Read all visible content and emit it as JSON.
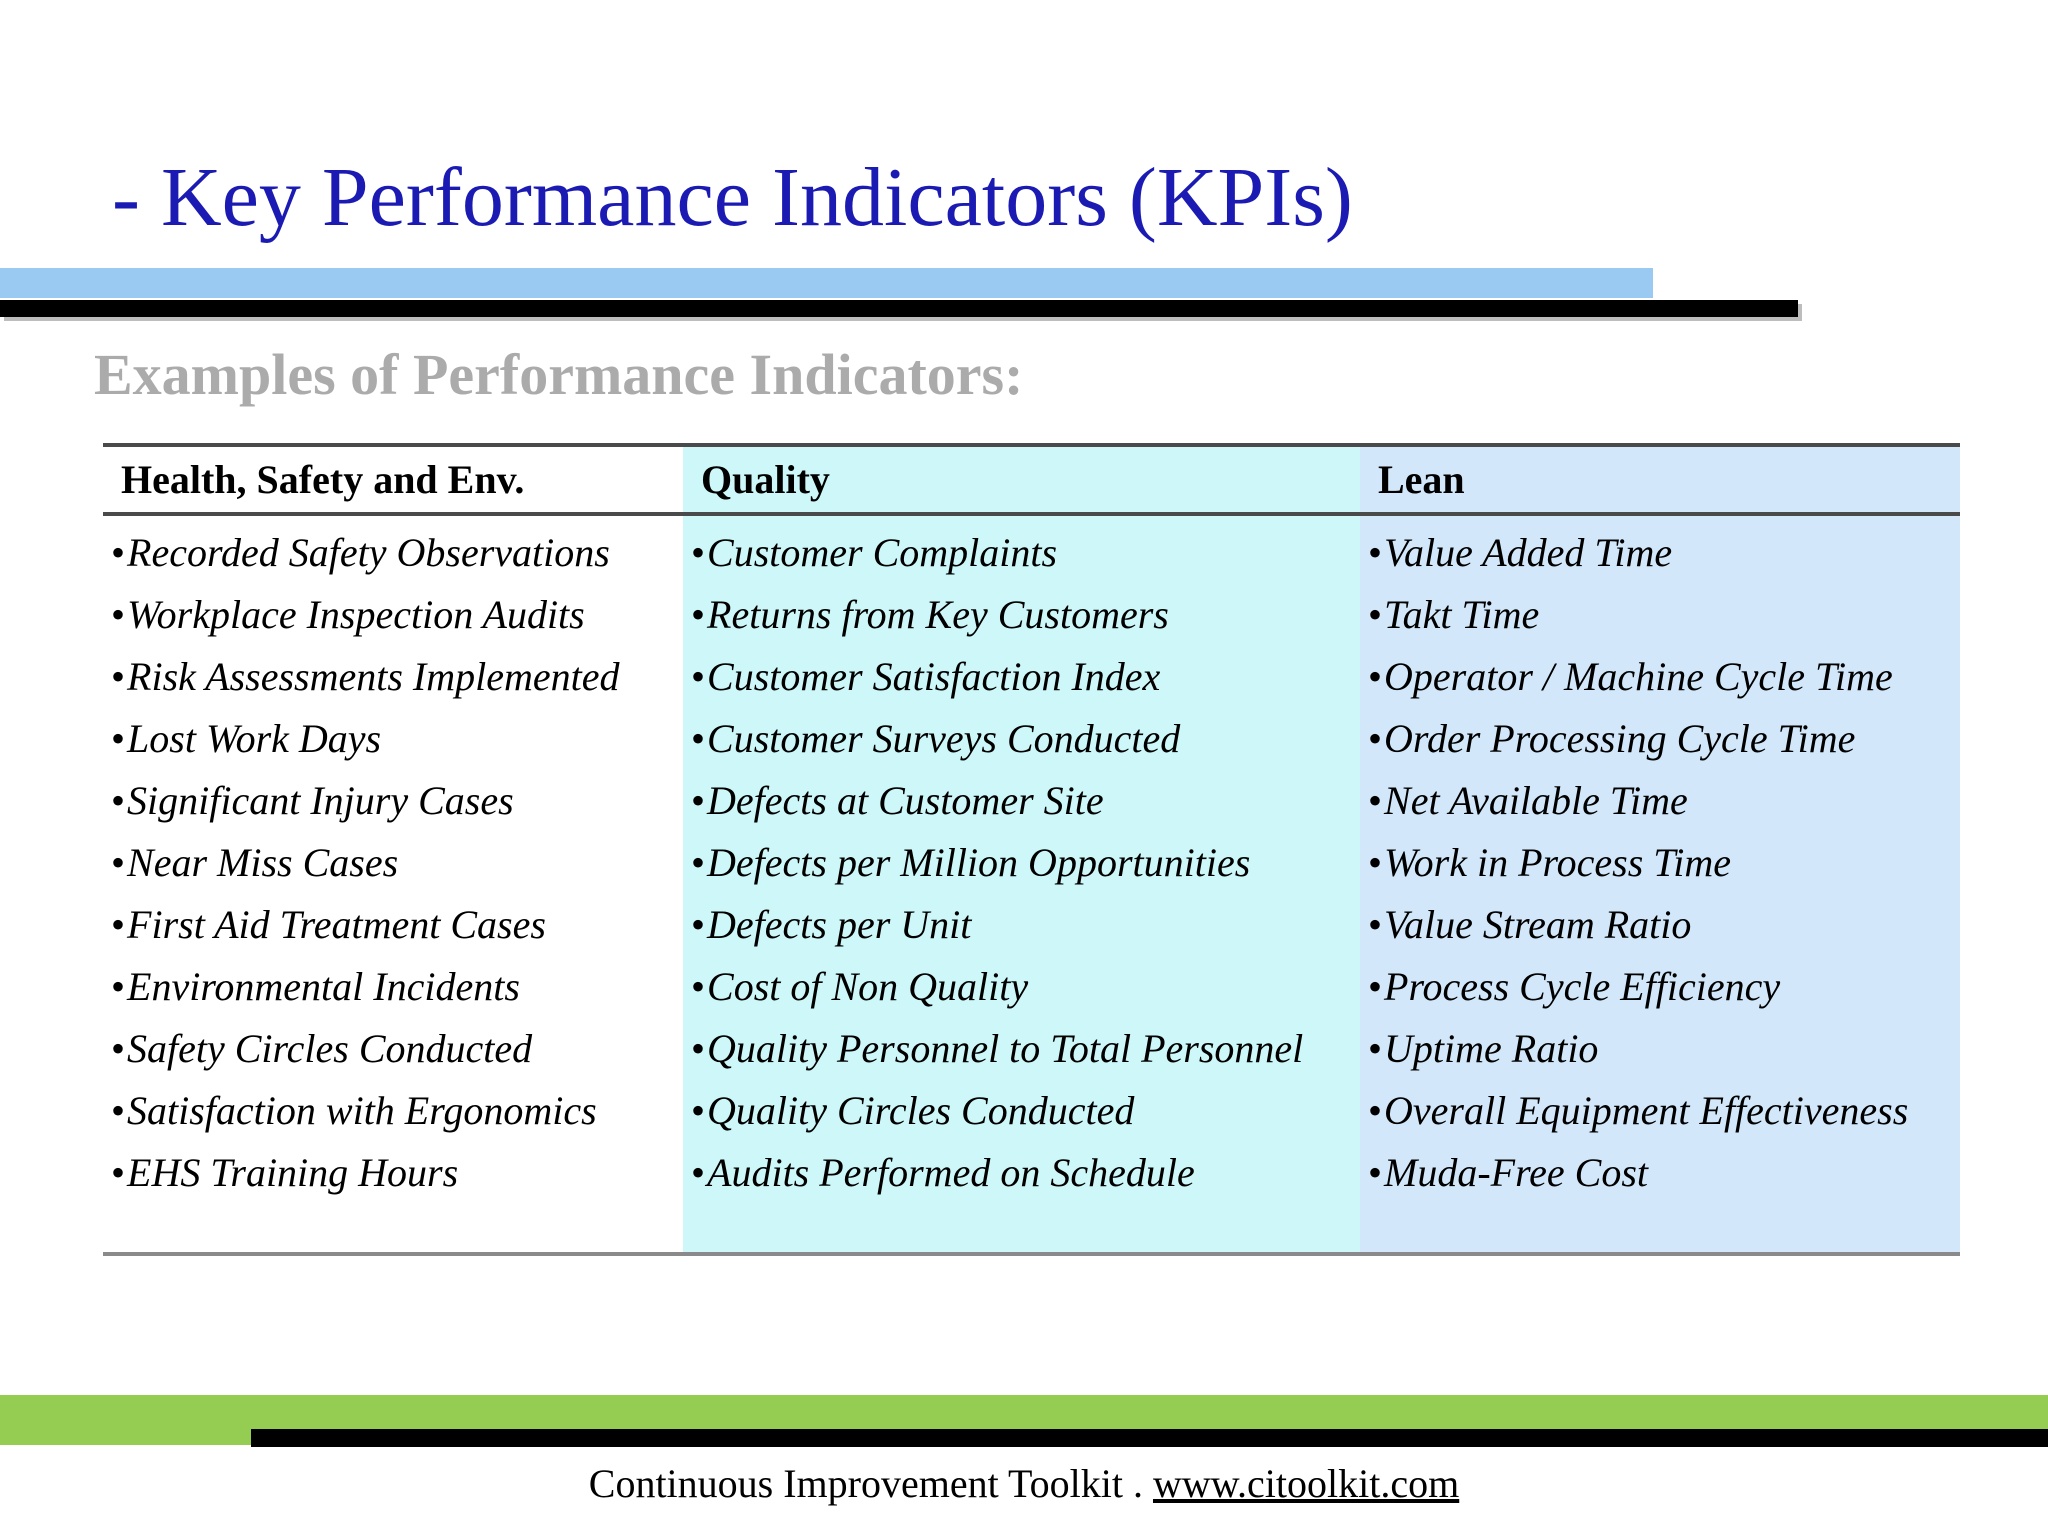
{
  "slide": {
    "title": "- Key Performance Indicators (KPIs)",
    "subtitle": "Examples of Performance Indicators:",
    "colors": {
      "title_blue": "#1b1bb3",
      "top_bar_blue": "#9ac9f2",
      "subtitle_gray": "#ababab",
      "header_bg": "#efefef",
      "col_quality_bg": "#cdf7f8",
      "col_lean_bg": "#d2e8fa",
      "table_border_dark": "#4a4a4a",
      "table_border_light": "#8a8a8a",
      "footer_green": "#95cd52"
    }
  },
  "table": {
    "bullet": "•",
    "columns": [
      {
        "header": "Health, Safety and Env.",
        "items": [
          "Recorded Safety Observations",
          "Workplace Inspection Audits",
          "Risk Assessments Implemented",
          "Lost Work Days",
          "Significant Injury Cases",
          "Near Miss Cases",
          "First Aid Treatment Cases",
          "Environmental Incidents",
          "Safety Circles Conducted",
          "Satisfaction with Ergonomics",
          "EHS Training Hours"
        ]
      },
      {
        "header": "Quality",
        "items": [
          "Customer Complaints",
          "Returns from Key Customers",
          "Customer Satisfaction Index",
          "Customer Surveys Conducted",
          "Defects at Customer Site",
          "Defects per Million Opportunities",
          "Defects per Unit",
          "Cost of Non Quality",
          "Quality Personnel to Total Personnel",
          "Quality Circles Conducted",
          "Audits Performed on Schedule"
        ]
      },
      {
        "header": "Lean",
        "items": [
          "Value Added Time",
          "Takt Time",
          "Operator / Machine Cycle Time",
          "Order Processing Cycle Time",
          "Net Available Time",
          "Work in Process Time",
          "Value Stream Ratio",
          "Process Cycle Efficiency",
          "Uptime Ratio",
          "Overall Equipment Effectiveness",
          "Muda-Free Cost"
        ]
      }
    ]
  },
  "footer": {
    "text": "Continuous Improvement Toolkit",
    "separator": " . ",
    "link": "www.citoolkit.com"
  }
}
